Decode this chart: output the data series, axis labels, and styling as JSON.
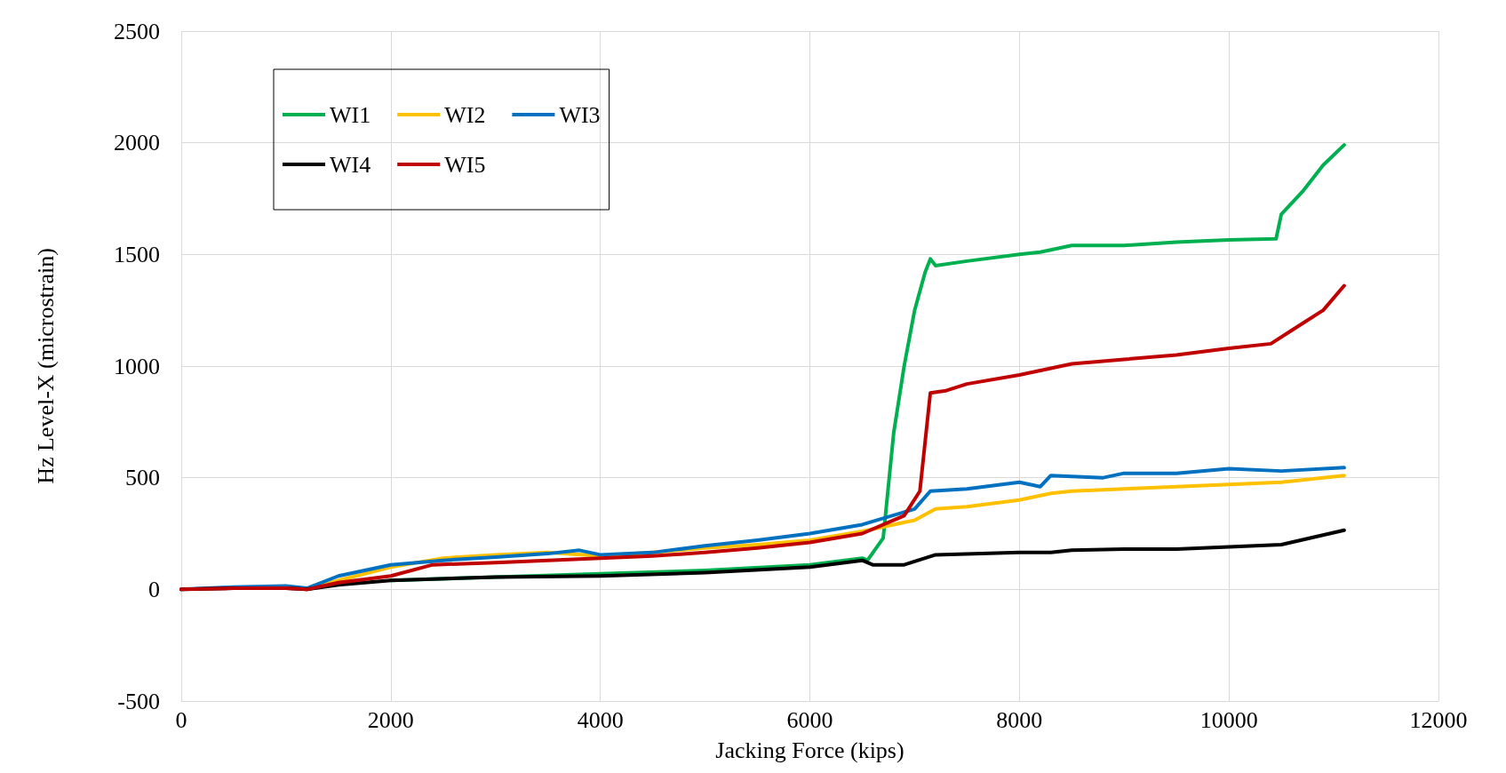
{
  "chart_data": {
    "type": "line",
    "xlabel": "Jacking Force (kips)",
    "ylabel": "Hz Level-X (microstrain)",
    "xlim": [
      0,
      12000
    ],
    "xticks": [
      0,
      2000,
      4000,
      6000,
      8000,
      10000,
      12000
    ],
    "ylim": [
      -500,
      2500
    ],
    "yticks": [
      -500,
      0,
      500,
      1000,
      1500,
      2000,
      2500
    ],
    "grid": true,
    "legend": "top left",
    "marker": "none",
    "line_style": "solid",
    "series": [
      {
        "name": "WI1",
        "color": "#00b050",
        "x": [
          2000,
          3000,
          4000,
          5000,
          6000,
          6500,
          6550,
          6700,
          6800,
          6900,
          7000,
          7100,
          7150,
          7200,
          7500,
          8000,
          8200,
          8500,
          9000,
          9500,
          10000,
          10450,
          10500,
          10700,
          10900,
          11100
        ],
        "values": [
          40,
          55,
          70,
          85,
          110,
          140,
          130,
          230,
          700,
          1000,
          1250,
          1420,
          1480,
          1450,
          1470,
          1500,
          1510,
          1540,
          1540,
          1555,
          1565,
          1570,
          1680,
          1780,
          1900,
          1990
        ]
      },
      {
        "name": "WI2",
        "color": "#ffc000",
        "x": [
          1000,
          1200,
          1500,
          2000,
          2500,
          3000,
          3500,
          4000,
          4500,
          5000,
          5500,
          6000,
          6500,
          7000,
          7200,
          7500,
          8000,
          8300,
          8500,
          9000,
          9500,
          10000,
          10500,
          11100
        ],
        "values": [
          10,
          0,
          40,
          100,
          140,
          155,
          165,
          150,
          165,
          185,
          200,
          220,
          260,
          310,
          360,
          370,
          400,
          430,
          440,
          450,
          460,
          470,
          480,
          510
        ]
      },
      {
        "name": "WI3",
        "color": "#0070c0",
        "x": [
          0,
          500,
          1000,
          1200,
          1500,
          2000,
          2500,
          3000,
          3500,
          3800,
          4000,
          4500,
          5000,
          5500,
          6000,
          6500,
          7000,
          7150,
          7500,
          8000,
          8200,
          8300,
          8800,
          9000,
          9500,
          10000,
          10500,
          11100
        ],
        "values": [
          0,
          10,
          15,
          5,
          60,
          110,
          130,
          145,
          160,
          175,
          155,
          165,
          195,
          220,
          250,
          290,
          360,
          440,
          450,
          480,
          460,
          510,
          500,
          520,
          520,
          540,
          530,
          545
        ]
      },
      {
        "name": "WI4",
        "color": "#000000",
        "x": [
          0,
          500,
          1000,
          1200,
          1500,
          2000,
          3000,
          4000,
          5000,
          6000,
          6500,
          6600,
          6900,
          7200,
          8000,
          8300,
          8500,
          9000,
          9500,
          10000,
          10500,
          11100
        ],
        "values": [
          0,
          5,
          5,
          0,
          20,
          40,
          55,
          60,
          75,
          100,
          130,
          110,
          110,
          155,
          165,
          165,
          175,
          180,
          180,
          190,
          200,
          265
        ]
      },
      {
        "name": "WI5",
        "color": "#c00000",
        "x": [
          0,
          500,
          1000,
          1200,
          1500,
          2000,
          2400,
          3000,
          3500,
          4000,
          4500,
          5000,
          5500,
          6000,
          6500,
          6900,
          7050,
          7150,
          7300,
          7500,
          8000,
          8500,
          9000,
          9500,
          10000,
          10400,
          10600,
          10900,
          11100
        ],
        "values": [
          0,
          5,
          5,
          0,
          30,
          60,
          110,
          120,
          130,
          140,
          150,
          165,
          185,
          210,
          250,
          330,
          440,
          880,
          890,
          920,
          960,
          1010,
          1030,
          1050,
          1080,
          1100,
          1160,
          1250,
          1360
        ]
      }
    ]
  }
}
